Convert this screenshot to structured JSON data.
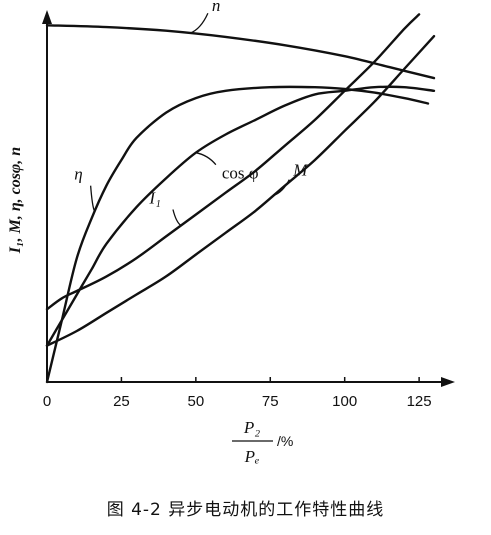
{
  "chart_data": {
    "type": "line",
    "title": "",
    "caption": "图 4-2   异步电动机的工作特性曲线",
    "ylabel": "I₁, M, η, cosφ, n",
    "xlabel": {
      "numerator": "P₂",
      "denominator": "Pₑ",
      "unit": "/%"
    },
    "xlim": [
      0,
      130
    ],
    "ylim": [
      0,
      1
    ],
    "xticks": [
      0,
      25,
      50,
      75,
      100,
      125
    ],
    "x_tick_labels": [
      "0",
      "25",
      "50",
      "75",
      "100",
      "125"
    ],
    "series": [
      {
        "name": "n",
        "label": "n",
        "x": [
          0,
          20,
          40,
          60,
          80,
          100,
          115,
          130
        ],
        "y": [
          0.98,
          0.975,
          0.965,
          0.948,
          0.925,
          0.895,
          0.865,
          0.835
        ]
      },
      {
        "name": "η",
        "label": "η",
        "x": [
          0,
          5,
          10,
          15,
          20,
          25,
          30,
          40,
          50,
          60,
          75,
          90,
          100,
          110,
          120,
          128
        ],
        "y": [
          0.0,
          0.17,
          0.34,
          0.45,
          0.54,
          0.61,
          0.67,
          0.74,
          0.78,
          0.8,
          0.81,
          0.81,
          0.805,
          0.795,
          0.78,
          0.765
        ]
      },
      {
        "name": "cos φ",
        "label": "cos φ",
        "x": [
          0,
          5,
          10,
          15,
          20,
          30,
          40,
          50,
          60,
          70,
          80,
          90,
          100,
          110,
          120,
          130
        ],
        "y": [
          0.1,
          0.17,
          0.24,
          0.31,
          0.38,
          0.48,
          0.56,
          0.63,
          0.68,
          0.72,
          0.76,
          0.79,
          0.8,
          0.81,
          0.81,
          0.8
        ]
      },
      {
        "name": "I₁",
        "label": "I₁",
        "x": [
          0,
          5,
          10,
          20,
          30,
          40,
          50,
          60,
          70,
          80,
          90,
          100,
          110,
          120,
          125
        ],
        "y": [
          0.2,
          0.23,
          0.25,
          0.29,
          0.34,
          0.4,
          0.46,
          0.52,
          0.58,
          0.65,
          0.72,
          0.8,
          0.88,
          0.97,
          1.01
        ]
      },
      {
        "name": "M",
        "label": "M",
        "x": [
          0,
          10,
          20,
          30,
          40,
          50,
          60,
          70,
          80,
          90,
          100,
          110,
          120,
          130
        ],
        "y": [
          0.1,
          0.14,
          0.19,
          0.24,
          0.29,
          0.35,
          0.41,
          0.47,
          0.54,
          0.61,
          0.69,
          0.77,
          0.86,
          0.95
        ]
      }
    ],
    "grid": false,
    "legend": "none"
  }
}
